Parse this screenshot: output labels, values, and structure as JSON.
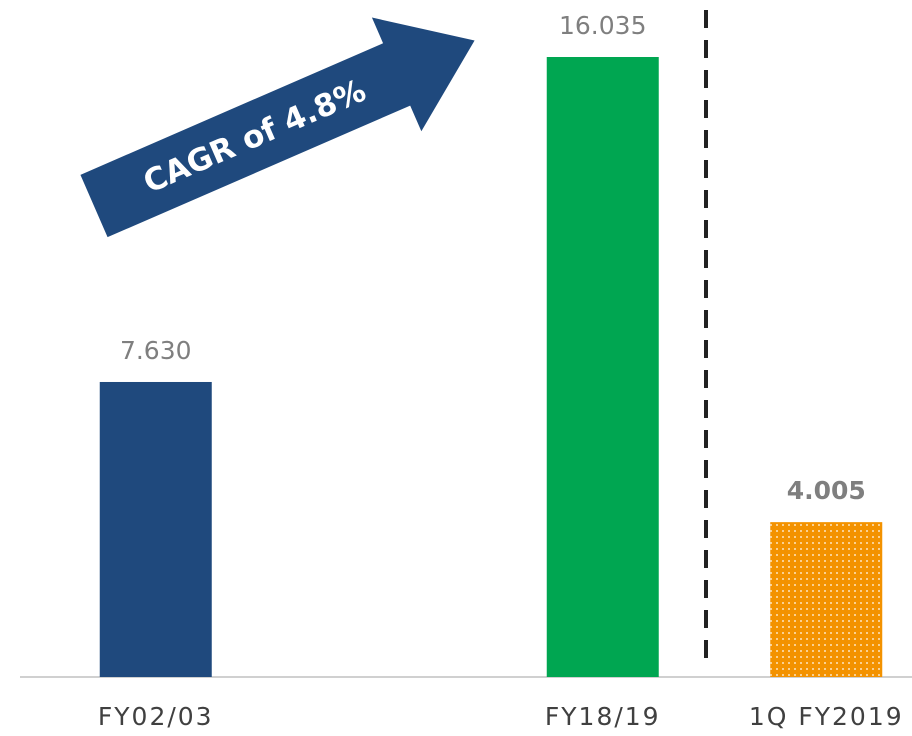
{
  "chart_data": {
    "type": "bar",
    "annotation": "CAGR of 4.8%",
    "categories": [
      "FY02/03",
      null,
      "FY18/19",
      "1Q FY2019"
    ],
    "values": [
      7.63,
      null,
      16.035,
      4.005
    ],
    "value_labels": [
      "7.630",
      null,
      "16.035",
      "4.005"
    ],
    "colors": [
      "#1f497d",
      null,
      "#00a651",
      "#f39200"
    ],
    "patterns": [
      null,
      null,
      null,
      "dots"
    ]
  }
}
